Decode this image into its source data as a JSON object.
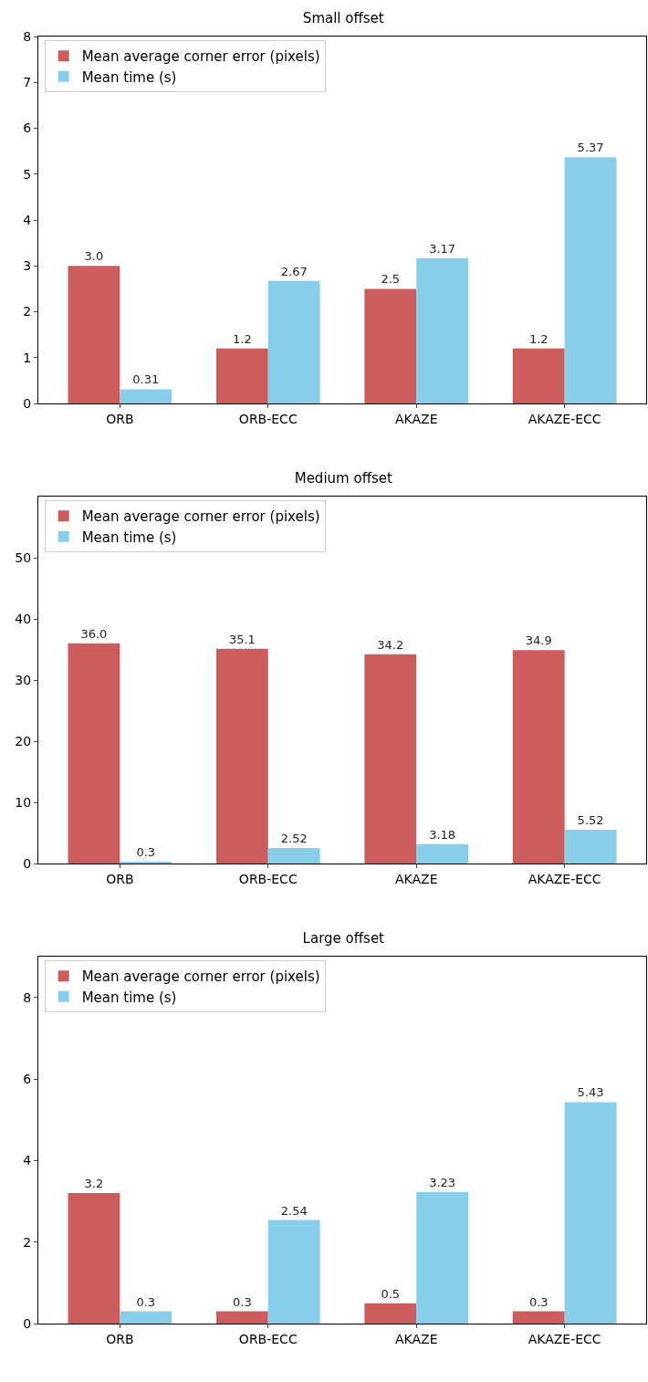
{
  "chart_data": [
    {
      "type": "bar",
      "title": "Small offset",
      "categories": [
        "ORB",
        "ORB-ECC",
        "AKAZE",
        "AKAZE-ECC"
      ],
      "series": [
        {
          "name": "Mean average corner error (pixels)",
          "color": "#cd5c5c",
          "values": [
            3.0,
            1.2,
            2.5,
            1.2
          ],
          "value_labels": [
            "3.0",
            "1.2",
            "2.5",
            "1.2"
          ]
        },
        {
          "name": "Mean time (s)",
          "color": "#87ceeb",
          "values": [
            0.31,
            2.67,
            3.17,
            5.37
          ],
          "value_labels": [
            "0.31",
            "2.67",
            "3.17",
            "5.37"
          ]
        }
      ],
      "ylim": [
        0,
        8
      ],
      "yticks": [
        0,
        1,
        2,
        3,
        4,
        5,
        6,
        7,
        8
      ],
      "grid": false,
      "legend": "top left"
    },
    {
      "type": "bar",
      "title": "Medium offset",
      "categories": [
        "ORB",
        "ORB-ECC",
        "AKAZE",
        "AKAZE-ECC"
      ],
      "series": [
        {
          "name": "Mean average corner error (pixels)",
          "color": "#cd5c5c",
          "values": [
            36.0,
            35.1,
            34.2,
            34.9
          ],
          "value_labels": [
            "36.0",
            "35.1",
            "34.2",
            "34.9"
          ]
        },
        {
          "name": "Mean time (s)",
          "color": "#87ceeb",
          "values": [
            0.3,
            2.52,
            3.18,
            5.52
          ],
          "value_labels": [
            "0.3",
            "2.52",
            "3.18",
            "5.52"
          ]
        }
      ],
      "ylim": [
        0,
        60
      ],
      "yticks": [
        0,
        10,
        20,
        30,
        40,
        50
      ],
      "grid": false,
      "legend": "top left"
    },
    {
      "type": "bar",
      "title": "Large offset",
      "categories": [
        "ORB",
        "ORB-ECC",
        "AKAZE",
        "AKAZE-ECC"
      ],
      "series": [
        {
          "name": "Mean average corner error (pixels)",
          "color": "#cd5c5c",
          "values": [
            3.2,
            0.3,
            0.5,
            0.3
          ],
          "value_labels": [
            "3.2",
            "0.3",
            "0.5",
            "0.3"
          ]
        },
        {
          "name": "Mean time (s)",
          "color": "#87ceeb",
          "values": [
            0.3,
            2.54,
            3.23,
            5.43
          ],
          "value_labels": [
            "0.3",
            "2.54",
            "3.23",
            "5.43"
          ]
        }
      ],
      "ylim": [
        0,
        9
      ],
      "yticks": [
        0,
        2,
        4,
        6,
        8
      ],
      "grid": false,
      "legend": "top left"
    }
  ]
}
